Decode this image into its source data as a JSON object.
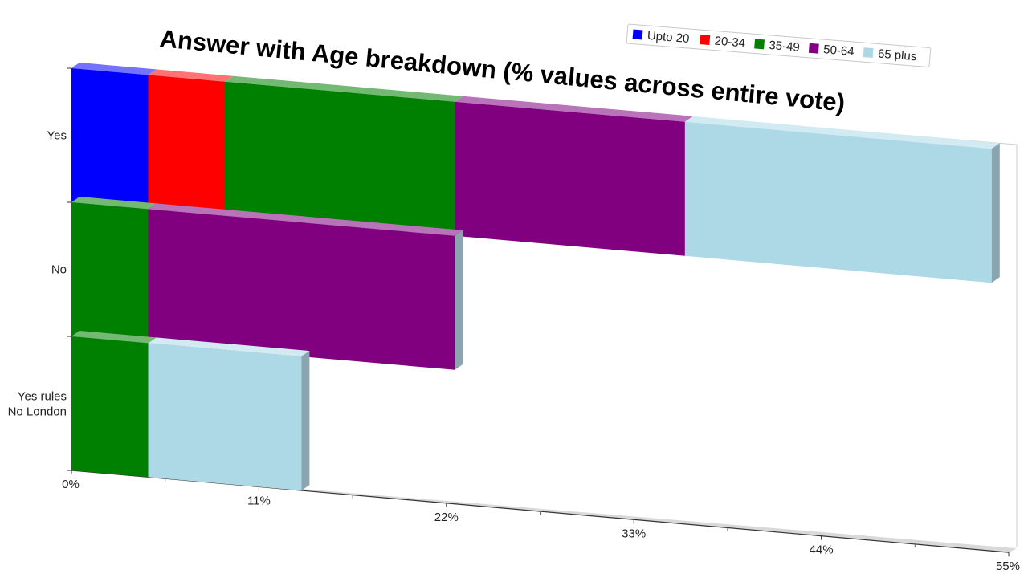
{
  "chart_data": {
    "type": "bar",
    "orientation": "horizontal",
    "stacked": true,
    "title": "Answer with Age breakdown (% values across entire vote)",
    "categories": [
      "Yes",
      "No",
      "Yes rules\nNo London"
    ],
    "series": [
      {
        "name": "Upto 20",
        "color": "#0000ff",
        "values": [
          4.5,
          0,
          0
        ]
      },
      {
        "name": "20-34",
        "color": "#ff0000",
        "values": [
          4.5,
          0,
          0
        ]
      },
      {
        "name": "35-49",
        "color": "#008000",
        "values": [
          13.5,
          4.5,
          4.5
        ]
      },
      {
        "name": "50-64",
        "color": "#800080",
        "values": [
          13.5,
          18,
          0
        ]
      },
      {
        "name": "65 plus",
        "color": "#add8e6",
        "values": [
          18,
          0,
          9
        ]
      }
    ],
    "x_ticks": [
      "0%",
      "11%",
      "22%",
      "33%",
      "44%",
      "55%"
    ],
    "xlim": [
      0,
      55
    ],
    "legend": "top-right",
    "grid": false
  }
}
